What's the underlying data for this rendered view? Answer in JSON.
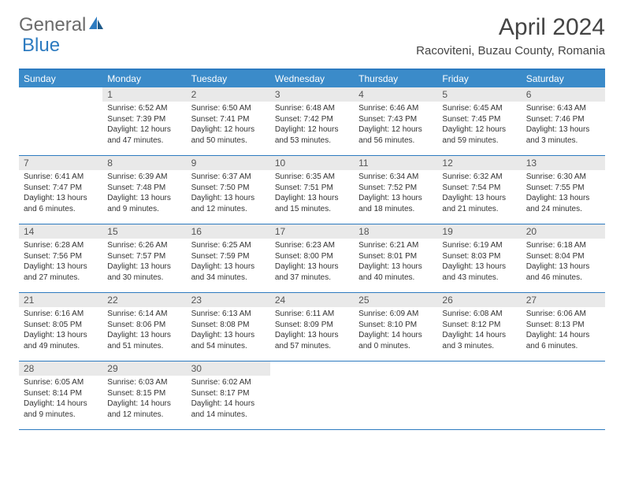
{
  "logo": {
    "general": "General",
    "blue": "Blue"
  },
  "title": "April 2024",
  "location": "Racoviteni, Buzau County, Romania",
  "colors": {
    "header_bg": "#3b8bc9",
    "border": "#2d7bc0",
    "daynum_bg": "#e9e9e9",
    "text": "#333333",
    "logo_gray": "#6b6b6b",
    "logo_blue": "#2d7bc0"
  },
  "weekdays": [
    "Sunday",
    "Monday",
    "Tuesday",
    "Wednesday",
    "Thursday",
    "Friday",
    "Saturday"
  ],
  "weeks": [
    [
      {
        "n": "",
        "sunrise": "",
        "sunset": "",
        "daylight": ""
      },
      {
        "n": "1",
        "sunrise": "Sunrise: 6:52 AM",
        "sunset": "Sunset: 7:39 PM",
        "daylight": "Daylight: 12 hours and 47 minutes."
      },
      {
        "n": "2",
        "sunrise": "Sunrise: 6:50 AM",
        "sunset": "Sunset: 7:41 PM",
        "daylight": "Daylight: 12 hours and 50 minutes."
      },
      {
        "n": "3",
        "sunrise": "Sunrise: 6:48 AM",
        "sunset": "Sunset: 7:42 PM",
        "daylight": "Daylight: 12 hours and 53 minutes."
      },
      {
        "n": "4",
        "sunrise": "Sunrise: 6:46 AM",
        "sunset": "Sunset: 7:43 PM",
        "daylight": "Daylight: 12 hours and 56 minutes."
      },
      {
        "n": "5",
        "sunrise": "Sunrise: 6:45 AM",
        "sunset": "Sunset: 7:45 PM",
        "daylight": "Daylight: 12 hours and 59 minutes."
      },
      {
        "n": "6",
        "sunrise": "Sunrise: 6:43 AM",
        "sunset": "Sunset: 7:46 PM",
        "daylight": "Daylight: 13 hours and 3 minutes."
      }
    ],
    [
      {
        "n": "7",
        "sunrise": "Sunrise: 6:41 AM",
        "sunset": "Sunset: 7:47 PM",
        "daylight": "Daylight: 13 hours and 6 minutes."
      },
      {
        "n": "8",
        "sunrise": "Sunrise: 6:39 AM",
        "sunset": "Sunset: 7:48 PM",
        "daylight": "Daylight: 13 hours and 9 minutes."
      },
      {
        "n": "9",
        "sunrise": "Sunrise: 6:37 AM",
        "sunset": "Sunset: 7:50 PM",
        "daylight": "Daylight: 13 hours and 12 minutes."
      },
      {
        "n": "10",
        "sunrise": "Sunrise: 6:35 AM",
        "sunset": "Sunset: 7:51 PM",
        "daylight": "Daylight: 13 hours and 15 minutes."
      },
      {
        "n": "11",
        "sunrise": "Sunrise: 6:34 AM",
        "sunset": "Sunset: 7:52 PM",
        "daylight": "Daylight: 13 hours and 18 minutes."
      },
      {
        "n": "12",
        "sunrise": "Sunrise: 6:32 AM",
        "sunset": "Sunset: 7:54 PM",
        "daylight": "Daylight: 13 hours and 21 minutes."
      },
      {
        "n": "13",
        "sunrise": "Sunrise: 6:30 AM",
        "sunset": "Sunset: 7:55 PM",
        "daylight": "Daylight: 13 hours and 24 minutes."
      }
    ],
    [
      {
        "n": "14",
        "sunrise": "Sunrise: 6:28 AM",
        "sunset": "Sunset: 7:56 PM",
        "daylight": "Daylight: 13 hours and 27 minutes."
      },
      {
        "n": "15",
        "sunrise": "Sunrise: 6:26 AM",
        "sunset": "Sunset: 7:57 PM",
        "daylight": "Daylight: 13 hours and 30 minutes."
      },
      {
        "n": "16",
        "sunrise": "Sunrise: 6:25 AM",
        "sunset": "Sunset: 7:59 PM",
        "daylight": "Daylight: 13 hours and 34 minutes."
      },
      {
        "n": "17",
        "sunrise": "Sunrise: 6:23 AM",
        "sunset": "Sunset: 8:00 PM",
        "daylight": "Daylight: 13 hours and 37 minutes."
      },
      {
        "n": "18",
        "sunrise": "Sunrise: 6:21 AM",
        "sunset": "Sunset: 8:01 PM",
        "daylight": "Daylight: 13 hours and 40 minutes."
      },
      {
        "n": "19",
        "sunrise": "Sunrise: 6:19 AM",
        "sunset": "Sunset: 8:03 PM",
        "daylight": "Daylight: 13 hours and 43 minutes."
      },
      {
        "n": "20",
        "sunrise": "Sunrise: 6:18 AM",
        "sunset": "Sunset: 8:04 PM",
        "daylight": "Daylight: 13 hours and 46 minutes."
      }
    ],
    [
      {
        "n": "21",
        "sunrise": "Sunrise: 6:16 AM",
        "sunset": "Sunset: 8:05 PM",
        "daylight": "Daylight: 13 hours and 49 minutes."
      },
      {
        "n": "22",
        "sunrise": "Sunrise: 6:14 AM",
        "sunset": "Sunset: 8:06 PM",
        "daylight": "Daylight: 13 hours and 51 minutes."
      },
      {
        "n": "23",
        "sunrise": "Sunrise: 6:13 AM",
        "sunset": "Sunset: 8:08 PM",
        "daylight": "Daylight: 13 hours and 54 minutes."
      },
      {
        "n": "24",
        "sunrise": "Sunrise: 6:11 AM",
        "sunset": "Sunset: 8:09 PM",
        "daylight": "Daylight: 13 hours and 57 minutes."
      },
      {
        "n": "25",
        "sunrise": "Sunrise: 6:09 AM",
        "sunset": "Sunset: 8:10 PM",
        "daylight": "Daylight: 14 hours and 0 minutes."
      },
      {
        "n": "26",
        "sunrise": "Sunrise: 6:08 AM",
        "sunset": "Sunset: 8:12 PM",
        "daylight": "Daylight: 14 hours and 3 minutes."
      },
      {
        "n": "27",
        "sunrise": "Sunrise: 6:06 AM",
        "sunset": "Sunset: 8:13 PM",
        "daylight": "Daylight: 14 hours and 6 minutes."
      }
    ],
    [
      {
        "n": "28",
        "sunrise": "Sunrise: 6:05 AM",
        "sunset": "Sunset: 8:14 PM",
        "daylight": "Daylight: 14 hours and 9 minutes."
      },
      {
        "n": "29",
        "sunrise": "Sunrise: 6:03 AM",
        "sunset": "Sunset: 8:15 PM",
        "daylight": "Daylight: 14 hours and 12 minutes."
      },
      {
        "n": "30",
        "sunrise": "Sunrise: 6:02 AM",
        "sunset": "Sunset: 8:17 PM",
        "daylight": "Daylight: 14 hours and 14 minutes."
      },
      {
        "n": "",
        "sunrise": "",
        "sunset": "",
        "daylight": ""
      },
      {
        "n": "",
        "sunrise": "",
        "sunset": "",
        "daylight": ""
      },
      {
        "n": "",
        "sunrise": "",
        "sunset": "",
        "daylight": ""
      },
      {
        "n": "",
        "sunrise": "",
        "sunset": "",
        "daylight": ""
      }
    ]
  ]
}
